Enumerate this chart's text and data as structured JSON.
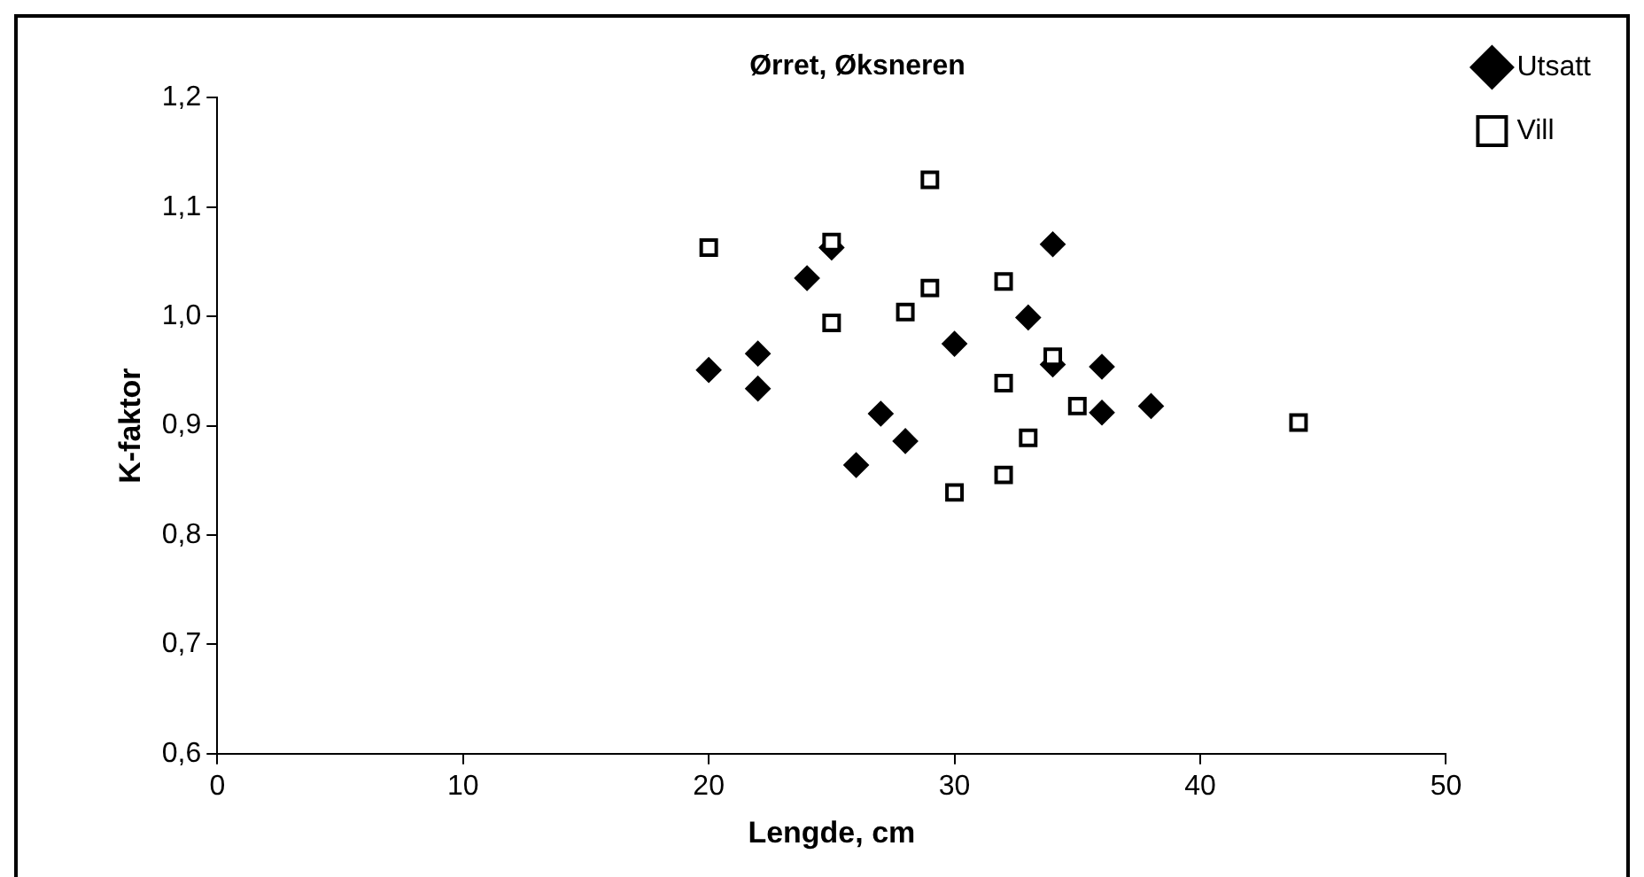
{
  "chart_data": {
    "type": "scatter",
    "title": "Ørret, Øksneren",
    "xlabel": "Lengde, cm",
    "ylabel": "K-faktor",
    "xlim": [
      0,
      50
    ],
    "xticks": [
      0,
      10,
      20,
      30,
      40,
      50
    ],
    "ylim": [
      0.6,
      1.2
    ],
    "yticks": [
      {
        "value": 0.6,
        "label": "0,6"
      },
      {
        "value": 0.7,
        "label": "0,7"
      },
      {
        "value": 0.8,
        "label": "0,8"
      },
      {
        "value": 0.9,
        "label": "0,9"
      },
      {
        "value": 1.0,
        "label": "1,0"
      },
      {
        "value": 1.1,
        "label": "1,1"
      },
      {
        "value": 1.2,
        "label": "1,2"
      }
    ],
    "legend": "top right",
    "grid": false,
    "series": [
      {
        "name": "Utsatt",
        "color": "#000000",
        "marker": "diamond",
        "x": [
          20,
          22,
          22,
          24,
          25,
          26,
          27,
          28,
          30,
          33,
          34,
          34,
          36,
          36,
          38
        ],
        "values": [
          0.951,
          0.966,
          0.934,
          1.035,
          1.063,
          0.864,
          0.911,
          0.886,
          0.975,
          0.999,
          1.066,
          0.956,
          0.954,
          0.912,
          0.918
        ]
      },
      {
        "name": "Vill",
        "color": "#000000",
        "marker": "square",
        "x": [
          20,
          25,
          25,
          29,
          29,
          28,
          32,
          32,
          32,
          30,
          33,
          34,
          35,
          44
        ],
        "values": [
          1.063,
          1.068,
          0.994,
          1.125,
          1.026,
          1.004,
          1.032,
          0.939,
          0.855,
          0.839,
          0.889,
          0.963,
          0.918,
          0.903
        ]
      }
    ]
  }
}
